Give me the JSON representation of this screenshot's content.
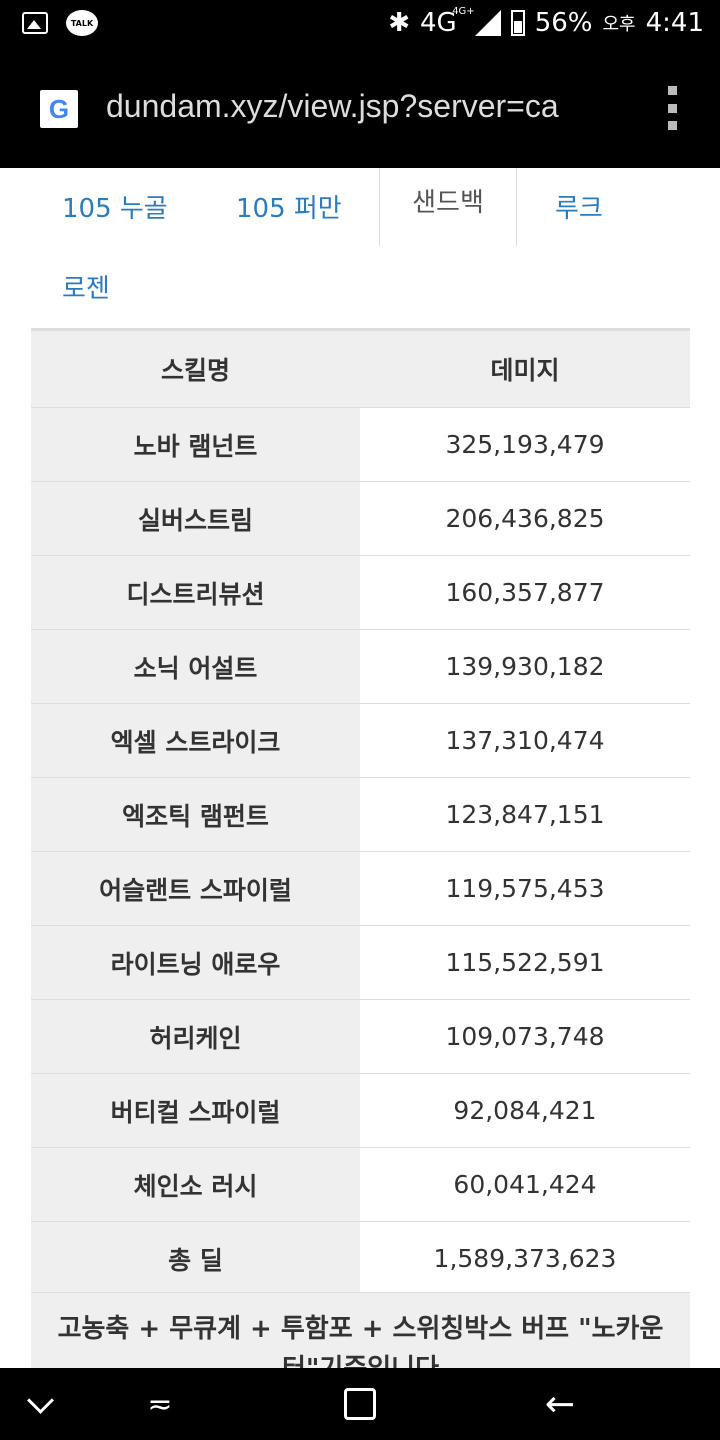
{
  "status_bar": {
    "talk_label": "TALK",
    "network": "4G",
    "network_sup": "4G+",
    "battery": "56%",
    "ampm": "오후",
    "time": "4:41"
  },
  "browser": {
    "url": "dundam.xyz/view.jsp?server=ca"
  },
  "tabs": [
    {
      "label": "105 누골"
    },
    {
      "label": "105 퍼만"
    },
    {
      "label": "샌드백"
    },
    {
      "label": "루크"
    },
    {
      "label": "로젠"
    }
  ],
  "table": {
    "headers": {
      "skill": "스킬명",
      "damage": "데미지"
    },
    "rows": [
      {
        "skill": "노바 램넌트",
        "damage": "325,193,479"
      },
      {
        "skill": "실버스트림",
        "damage": "206,436,825"
      },
      {
        "skill": "디스트리뷰션",
        "damage": "160,357,877"
      },
      {
        "skill": "소닉 어설트",
        "damage": "139,930,182"
      },
      {
        "skill": "엑셀 스트라이크",
        "damage": "137,310,474"
      },
      {
        "skill": "엑조틱 램펀트",
        "damage": "123,847,151"
      },
      {
        "skill": "어슬랜트 스파이럴",
        "damage": "119,575,453"
      },
      {
        "skill": "라이트닝 애로우",
        "damage": "115,522,591"
      },
      {
        "skill": "허리케인",
        "damage": "109,073,748"
      },
      {
        "skill": "버티컬 스파이럴",
        "damage": "92,084,421"
      },
      {
        "skill": "체인소 러시",
        "damage": "60,041,424"
      },
      {
        "skill": "총 딜",
        "damage": "1,589,373,623"
      }
    ],
    "note": "고농축 + 무큐계 + 투함포 + 스위칭박스 버프 \"노카운터\"기준입니다"
  }
}
